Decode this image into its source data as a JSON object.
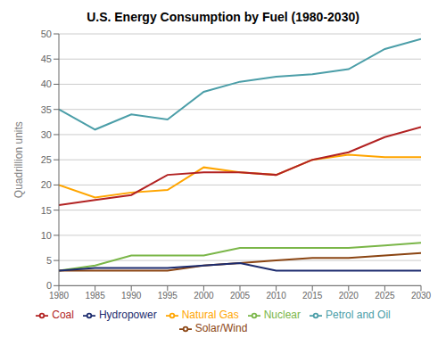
{
  "chart_data": {
    "type": "line",
    "title": "U.S. Energy Consumption by Fuel (1980-2030)",
    "y_label": "Quadrillion units",
    "x": [
      1980,
      1985,
      1990,
      1995,
      2000,
      2005,
      2010,
      2015,
      2020,
      2025,
      2030
    ],
    "xlim": [
      1980,
      2030
    ],
    "xticks": [
      1980,
      1985,
      1990,
      1995,
      2000,
      2005,
      2010,
      2015,
      2020,
      2025,
      2030
    ],
    "ylim": [
      0,
      50
    ],
    "yticks": [
      0,
      5,
      10,
      15,
      20,
      25,
      30,
      35,
      40,
      45,
      50
    ],
    "grid": "y",
    "legend": "bottom",
    "series": [
      {
        "name": "Petrol and Oil",
        "color": "#4B9EA8",
        "values": [
          35.0,
          31.0,
          34.0,
          33.0,
          38.5,
          40.5,
          41.5,
          42.0,
          43.0,
          47.0,
          49.0
        ]
      },
      {
        "name": "Natural Gas",
        "color": "#FFA500",
        "values": [
          20.0,
          17.5,
          18.5,
          19.0,
          23.5,
          22.5,
          22.0,
          25.0,
          26.0,
          25.5,
          25.5
        ]
      },
      {
        "name": "Coal",
        "color": "#B22222",
        "values": [
          16.0,
          17.0,
          18.0,
          22.0,
          22.5,
          22.5,
          22.0,
          25.0,
          26.5,
          29.5,
          31.5
        ]
      },
      {
        "name": "Nuclear",
        "color": "#7AB648",
        "values": [
          3.0,
          4.0,
          6.0,
          6.0,
          6.0,
          7.5,
          7.5,
          7.5,
          7.5,
          8.0,
          8.5
        ]
      },
      {
        "name": "Solar/Wind",
        "color": "#8B4513",
        "values": [
          3.0,
          3.0,
          3.0,
          3.0,
          4.0,
          4.5,
          5.0,
          5.5,
          5.5,
          6.0,
          6.5
        ]
      },
      {
        "name": "Hydropower",
        "color": "#1C2B6E",
        "values": [
          3.0,
          3.5,
          3.5,
          3.5,
          4.0,
          4.5,
          3.0,
          3.0,
          3.0,
          3.0,
          3.0
        ]
      }
    ]
  }
}
